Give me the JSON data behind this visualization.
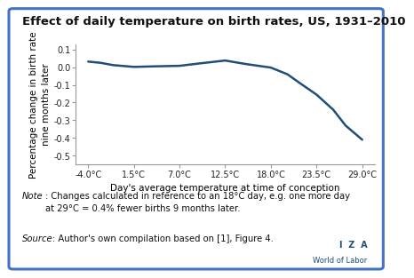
{
  "title": "Effect of daily temperature on birth rates, US, 1931–2010",
  "xlabel": "Day's average temperature at time of conception",
  "ylabel": "Percentage change in birth rate\nnine months later",
  "line_color": "#1F4E79",
  "x_values": [
    -4.0,
    1.5,
    7.0,
    12.5,
    18.0,
    23.5,
    29.0
  ],
  "x_smooth": [
    -4.0,
    -2.5,
    -1.0,
    1.5,
    4.0,
    7.0,
    9.5,
    12.5,
    15.0,
    18.0,
    20.0,
    21.5,
    23.5,
    25.5,
    27.0,
    29.0
  ],
  "y_smooth": [
    0.032,
    0.025,
    0.012,
    0.002,
    0.005,
    0.008,
    0.022,
    0.038,
    0.018,
    -0.002,
    -0.04,
    -0.09,
    -0.155,
    -0.24,
    -0.33,
    -0.41
  ],
  "xtick_labels": [
    "-4.0°C",
    "1.5°C",
    "7.0°C",
    "12.5°C",
    "18.0°C",
    "23.5°C",
    "29.0°C"
  ],
  "ytick_values": [
    0.1,
    0.0,
    -0.1,
    -0.2,
    -0.3,
    -0.4,
    -0.5
  ],
  "ytick_labels": [
    "0.1",
    "0.0",
    "-0.1",
    "-0.2",
    "-0.3",
    "-0.4",
    "-0.5"
  ],
  "ylim": [
    -0.55,
    0.13
  ],
  "xlim": [
    -5.5,
    30.5
  ],
  "note_italic": "Note",
  "note_rest": ": Changes calculated in reference to an 18°C day, e.g. one more day\nat 29°C = 0.4% fewer births 9 months later.",
  "source_italic": "Source",
  "source_rest": ": Author's own compilation based on [1], Figure 4.",
  "border_color": "#4472C4",
  "background_color": "#FFFFFF",
  "title_fontsize": 9.5,
  "tick_fontsize": 7.0,
  "label_fontsize": 7.5,
  "note_fontsize": 7.2,
  "iza_color": "#1F4E79"
}
